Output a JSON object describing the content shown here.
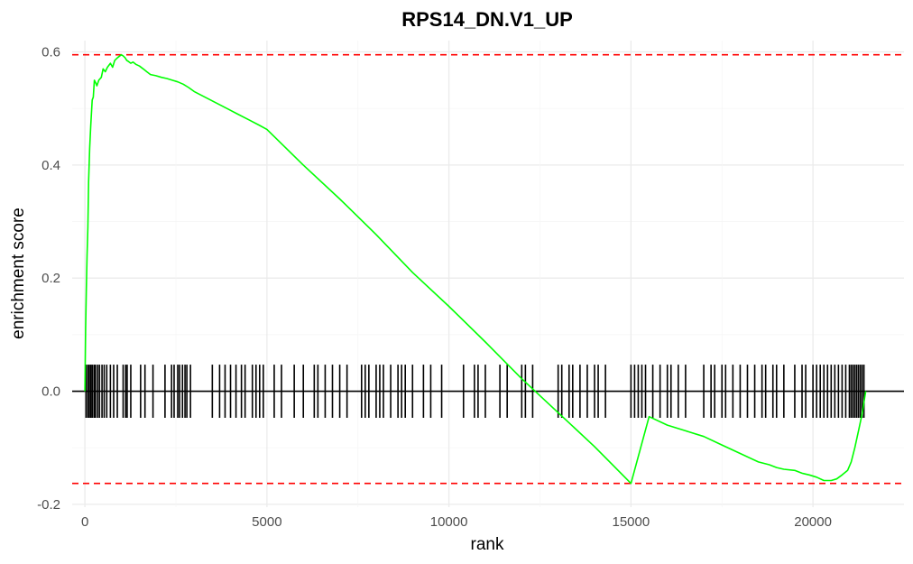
{
  "chart_data": {
    "type": "line",
    "title": "RPS14_DN.V1_UP",
    "xlabel": "rank",
    "ylabel": "enrichment score",
    "xlim": [
      -350,
      22500
    ],
    "ylim": [
      -0.205,
      0.62
    ],
    "x_ticks": [
      0,
      5000,
      10000,
      15000,
      20000
    ],
    "x_tick_labels": [
      "0",
      "5000",
      "10000",
      "15000",
      "20000"
    ],
    "y_ticks": [
      -0.2,
      0.0,
      0.2,
      0.4,
      0.6
    ],
    "y_tick_labels": [
      "-0.2",
      "0.0",
      "0.2",
      "0.4",
      "0.6"
    ],
    "grid": true,
    "series": [
      {
        "color": "#00ff00",
        "x": [
          0,
          20,
          40,
          60,
          80,
          100,
          130,
          160,
          200,
          230,
          260,
          300,
          330,
          380,
          450,
          500,
          560,
          620,
          700,
          760,
          820,
          900,
          1000,
          1050,
          1100,
          1150,
          1200,
          1260,
          1320,
          1400,
          1500,
          1600,
          1700,
          1800,
          1950,
          2100,
          2250,
          2400,
          2550,
          2700,
          2850,
          3000,
          3300,
          3600,
          3900,
          4200,
          4500,
          4800,
          5000,
          6000,
          7000,
          8000,
          9000,
          10000,
          11000,
          12000,
          13000,
          14000,
          15000,
          15500,
          16000,
          16500,
          17000,
          17500,
          18000,
          18500,
          18800,
          19000,
          19200,
          19500,
          19700,
          19900,
          20100,
          20300,
          20500,
          20650,
          20800,
          20950,
          21050,
          21150,
          21250,
          21350,
          21450
        ],
        "y": [
          0.0,
          0.11,
          0.18,
          0.24,
          0.29,
          0.37,
          0.43,
          0.47,
          0.515,
          0.52,
          0.55,
          0.545,
          0.54,
          0.55,
          0.555,
          0.57,
          0.565,
          0.573,
          0.58,
          0.573,
          0.585,
          0.59,
          0.595,
          0.593,
          0.59,
          0.585,
          0.583,
          0.58,
          0.582,
          0.578,
          0.575,
          0.57,
          0.565,
          0.56,
          0.558,
          0.555,
          0.553,
          0.55,
          0.547,
          0.543,
          0.537,
          0.53,
          0.52,
          0.51,
          0.5,
          0.49,
          0.48,
          0.47,
          0.463,
          0.4,
          0.34,
          0.277,
          0.21,
          0.15,
          0.087,
          0.022,
          -0.038,
          -0.098,
          -0.163,
          -0.045,
          -0.06,
          -0.07,
          -0.08,
          -0.095,
          -0.11,
          -0.125,
          -0.13,
          -0.135,
          -0.138,
          -0.14,
          -0.145,
          -0.148,
          -0.152,
          -0.158,
          -0.158,
          -0.155,
          -0.148,
          -0.14,
          -0.125,
          -0.1,
          -0.07,
          -0.04,
          0.0
        ]
      }
    ],
    "reference_lines": {
      "max_es": 0.595,
      "min_es": -0.163,
      "zero": 0.0,
      "dashed_color": "#ff0000",
      "zero_color": "#000000"
    },
    "gene_hits": [
      30,
      80,
      120,
      160,
      200,
      250,
      290,
      350,
      400,
      470,
      530,
      600,
      700,
      790,
      890,
      1050,
      1120,
      1160,
      1260,
      1530,
      1650,
      1870,
      2200,
      2380,
      2450,
      2550,
      2600,
      2680,
      2750,
      2800,
      2900,
      3500,
      3700,
      3850,
      4000,
      4150,
      4300,
      4400,
      4600,
      4700,
      4800,
      4900,
      5200,
      5400,
      5750,
      6000,
      6300,
      6400,
      6600,
      6800,
      7000,
      7200,
      7600,
      7700,
      7800,
      8000,
      8100,
      8200,
      8400,
      8600,
      8700,
      8800,
      9000,
      9300,
      9500,
      9800,
      10400,
      10700,
      10800,
      11000,
      11400,
      11600,
      12000,
      12100,
      12300,
      13000,
      13100,
      13300,
      13400,
      13600,
      13800,
      14000,
      14100,
      14300,
      15000,
      15100,
      15200,
      15300,
      15400,
      15600,
      15800,
      16000,
      16100,
      16300,
      16500,
      17000,
      17200,
      17300,
      17500,
      17600,
      17800,
      18000,
      18200,
      18400,
      18600,
      18700,
      18900,
      19000,
      19200,
      19500,
      19700,
      19800,
      20000,
      20100,
      20200,
      20300,
      20400,
      20500,
      20600,
      20700,
      20800,
      20900,
      21000,
      21050,
      21100,
      21150,
      21200,
      21250,
      21300,
      21350,
      21400
    ],
    "hit_height": 0.047,
    "colors": {
      "background": "#ffffff",
      "grid": "#ebebeb",
      "curve": "#00ff00"
    }
  }
}
